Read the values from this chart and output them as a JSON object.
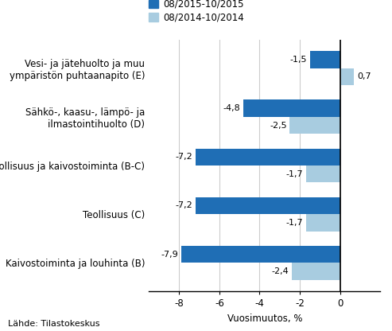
{
  "categories": [
    "Kaivostoiminta ja louhinta (B)",
    "Teollisuus (C)",
    "Teollisuus ja kaivostoiminta (B-C)",
    "Sähkö-, kaasu-, lämpö- ja\nilmastointihuolto (D)",
    "Vesi- ja jätehuolto ja muu\nympäristön puhtaanapito (E)"
  ],
  "series1_label": "08/2015-10/2015",
  "series2_label": "08/2014-10/2014",
  "series1_values": [
    -7.9,
    -7.2,
    -7.2,
    -4.8,
    -1.5
  ],
  "series2_values": [
    -2.4,
    -1.7,
    -1.7,
    -2.5,
    0.7
  ],
  "series1_color": "#1f6eb5",
  "series2_color": "#a8cce0",
  "xlabel": "Vuosimuutos, %",
  "xlim": [
    -9.5,
    2.0
  ],
  "xticks": [
    -8,
    -6,
    -4,
    -2,
    0
  ],
  "background_color": "#ffffff",
  "grid_color": "#cccccc",
  "label_fontsize": 8.5,
  "tick_fontsize": 8.5,
  "source_text": "Lähde: Tilastokeskus",
  "bar_height": 0.35,
  "value_fontsize": 8
}
